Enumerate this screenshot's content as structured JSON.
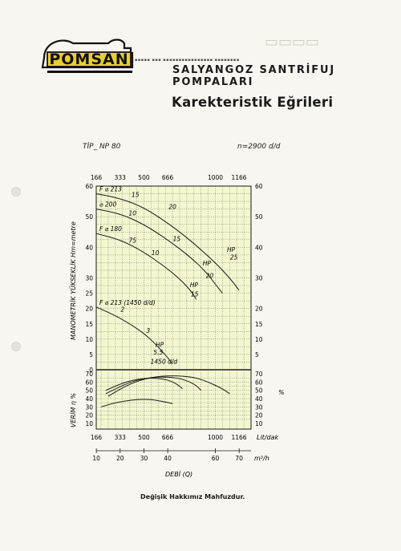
{
  "header": {
    "brand": "POMSAN",
    "subtitle": "SALYANGOZ SANTRİFUJ POMPALARI",
    "title": "Karekteristik Eğrileri"
  },
  "model": {
    "tip": "TİP_ NP 80",
    "speed": "n=2900 d/d"
  },
  "footer": "Değişik Hakkımız Mahfuzdur.",
  "colors": {
    "paper": "#f7f6f0",
    "plot_bg": "#f3f6cf",
    "ink": "#1b1b1b",
    "grid": "#2a2a2a"
  },
  "chart_data": {
    "type": "line",
    "title": "",
    "xlabel": "DEBİ (Q)",
    "x_top_ticks": [
      "166",
      "333",
      "500",
      "666",
      "1000",
      "1166"
    ],
    "x_bottom_ticks": [
      "166",
      "333",
      "500",
      "666",
      "1000",
      "1166"
    ],
    "x_bottom_unit": "Lit/dak",
    "x_m3h_ticks": [
      "10",
      "20",
      "30",
      "40",
      "60",
      "70"
    ],
    "x_m3h_unit": "m³/h",
    "xlim_lpm": [
      166,
      1250
    ],
    "head_axis": {
      "ylabel": "MANOMETRİK YÜKSEKLİK Hm=metre",
      "ylim": [
        0,
        60
      ],
      "ticks_left": [
        "60",
        "50",
        "40",
        "30",
        "25",
        "20",
        "15",
        "10",
        "5",
        "0"
      ],
      "ticks_right": [
        "60",
        "50",
        "40",
        "30",
        "20",
        "15",
        "10",
        "5"
      ]
    },
    "efficiency_axis": {
      "ylabel": "VERİM η %",
      "unit": "%",
      "ylim": [
        10,
        70
      ],
      "ticks": [
        "70",
        "60",
        "50",
        "40",
        "30",
        "20",
        "10"
      ]
    },
    "impellers": [
      {
        "label": "F ⌀ 213",
        "points": [
          [
            166,
            57.5
          ],
          [
            333,
            56
          ],
          [
            500,
            53
          ],
          [
            666,
            48
          ],
          [
            833,
            42
          ],
          [
            1000,
            35
          ],
          [
            1100,
            30
          ],
          [
            1166,
            26
          ]
        ]
      },
      {
        "label": "⌀ 200",
        "points": [
          [
            166,
            52.5
          ],
          [
            333,
            51
          ],
          [
            500,
            47.5
          ],
          [
            666,
            42.5
          ],
          [
            833,
            36.5
          ],
          [
            933,
            32
          ],
          [
            1000,
            28
          ],
          [
            1050,
            25
          ]
        ]
      },
      {
        "label": "F ⌀ 180",
        "points": [
          [
            166,
            44.5
          ],
          [
            333,
            42.5
          ],
          [
            500,
            38.5
          ],
          [
            666,
            33
          ],
          [
            766,
            29
          ],
          [
            833,
            25.5
          ],
          [
            866,
            23
          ]
        ]
      },
      {
        "label": "F ⌀ 213 (1450 d/d)",
        "points": [
          [
            166,
            20.5
          ],
          [
            333,
            17
          ],
          [
            500,
            12
          ],
          [
            600,
            7.5
          ],
          [
            666,
            4
          ],
          [
            700,
            2
          ]
        ]
      }
    ],
    "hp_labels": [
      {
        "text": "15",
        "x": 440,
        "head": 56.5
      },
      {
        "text": "20",
        "x": 700,
        "head": 52.5
      },
      {
        "text": "10",
        "x": 420,
        "head": 50.5
      },
      {
        "text": "15",
        "x": 730,
        "head": 42
      },
      {
        "text": "20",
        "x": 960,
        "head": 30
      },
      {
        "text": "25",
        "x": 1130,
        "head": 36
      },
      {
        "text": "HP",
        "x": 1110,
        "head": 38.5
      },
      {
        "text": "75",
        "x": 420,
        "head": 41.5
      },
      {
        "text": "10",
        "x": 580,
        "head": 37.5
      },
      {
        "text": "HP",
        "x": 940,
        "head": 34
      },
      {
        "text": "15",
        "x": 855,
        "head": 24
      },
      {
        "text": "HP",
        "x": 850,
        "head": 27
      },
      {
        "text": "2",
        "x": 350,
        "head": 19
      },
      {
        "text": "3",
        "x": 530,
        "head": 12
      },
      {
        "text": "HP",
        "x": 610,
        "head": 7.5
      },
      {
        "text": "5.5",
        "x": 600,
        "head": 5
      },
      {
        "text": "1450 d/d",
        "x": 640,
        "head": 2
      }
    ],
    "efficiency_curves": [
      {
        "points": [
          [
            250,
            43
          ],
          [
            400,
            58
          ],
          [
            550,
            66
          ],
          [
            700,
            68
          ],
          [
            850,
            66
          ],
          [
            950,
            60
          ],
          [
            1050,
            52
          ],
          [
            1100,
            46
          ]
        ]
      },
      {
        "points": [
          [
            233,
            46
          ],
          [
            400,
            60
          ],
          [
            550,
            66
          ],
          [
            700,
            66
          ],
          [
            800,
            62
          ],
          [
            866,
            56
          ],
          [
            900,
            50
          ]
        ]
      },
      {
        "points": [
          [
            233,
            50
          ],
          [
            380,
            61
          ],
          [
            520,
            65
          ],
          [
            640,
            64
          ],
          [
            720,
            59
          ],
          [
            770,
            52
          ]
        ]
      },
      {
        "points": [
          [
            200,
            30
          ],
          [
            320,
            36
          ],
          [
            450,
            39
          ],
          [
            550,
            39
          ],
          [
            620,
            37
          ],
          [
            700,
            34
          ]
        ]
      }
    ]
  }
}
